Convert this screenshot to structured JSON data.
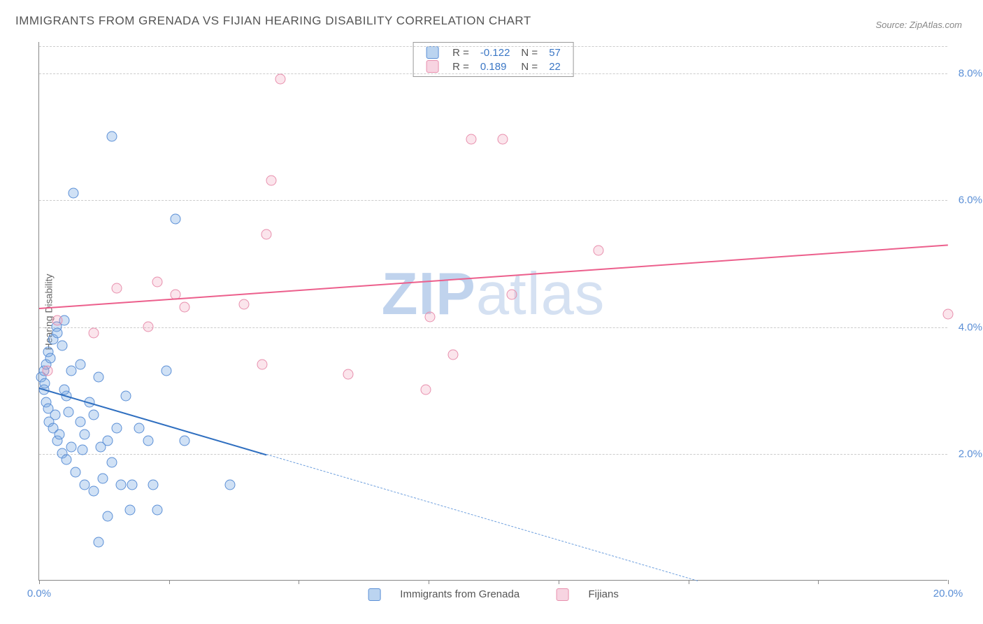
{
  "title": "IMMIGRANTS FROM GRENADA VS FIJIAN HEARING DISABILITY CORRELATION CHART",
  "source": "Source: ZipAtlas.com",
  "ylabel": "Hearing Disability",
  "watermark_bold": "ZIP",
  "watermark_rest": "atlas",
  "chart": {
    "type": "scatter",
    "background_color": "#ffffff",
    "grid_color": "#cccccc",
    "axis_color": "#888888",
    "tick_label_color": "#5b8fd6",
    "xlim": [
      0,
      20
    ],
    "ylim": [
      0,
      8.5
    ],
    "xticks": [
      0,
      2.86,
      5.71,
      8.57,
      11.43,
      14.29,
      17.14,
      20
    ],
    "xtick_labels": {
      "0": "0.0%",
      "20": "20.0%"
    },
    "yticks": [
      2,
      4,
      6,
      8
    ],
    "ytick_labels": {
      "2": "2.0%",
      "4": "4.0%",
      "6": "6.0%",
      "8": "8.0%"
    },
    "label_fontsize": 15,
    "title_fontsize": 17,
    "marker_size": 15,
    "series": [
      {
        "key": "grenada",
        "label": "Immigrants from Grenada",
        "color_fill": "rgba(120,170,225,0.35)",
        "color_stroke": "#5b8fd6",
        "R": "-0.122",
        "N": "57",
        "trend": {
          "x1": 0,
          "y1": 3.05,
          "x2": 14.5,
          "y2": 0,
          "solid_until_x": 5.0,
          "color": "#2f6fc0"
        },
        "points": [
          [
            0.05,
            3.2
          ],
          [
            0.1,
            3.3
          ],
          [
            0.1,
            3.0
          ],
          [
            0.12,
            3.1
          ],
          [
            0.15,
            3.4
          ],
          [
            0.15,
            2.8
          ],
          [
            0.2,
            2.7
          ],
          [
            0.2,
            3.6
          ],
          [
            0.22,
            2.5
          ],
          [
            0.25,
            3.5
          ],
          [
            0.3,
            2.4
          ],
          [
            0.3,
            3.8
          ],
          [
            0.35,
            2.6
          ],
          [
            0.38,
            4.0
          ],
          [
            0.4,
            2.2
          ],
          [
            0.4,
            3.9
          ],
          [
            0.45,
            2.3
          ],
          [
            0.5,
            2.0
          ],
          [
            0.5,
            3.7
          ],
          [
            0.55,
            4.1
          ],
          [
            0.6,
            1.9
          ],
          [
            0.6,
            2.9
          ],
          [
            0.7,
            2.1
          ],
          [
            0.7,
            3.3
          ],
          [
            0.75,
            6.1
          ],
          [
            0.8,
            1.7
          ],
          [
            0.9,
            2.5
          ],
          [
            0.9,
            3.4
          ],
          [
            1.0,
            1.5
          ],
          [
            1.0,
            2.3
          ],
          [
            1.1,
            2.8
          ],
          [
            1.2,
            1.4
          ],
          [
            1.2,
            2.6
          ],
          [
            1.3,
            3.2
          ],
          [
            1.4,
            1.6
          ],
          [
            1.5,
            2.2
          ],
          [
            1.5,
            1.0
          ],
          [
            1.6,
            7.0
          ],
          [
            1.7,
            2.4
          ],
          [
            1.8,
            1.5
          ],
          [
            1.9,
            2.9
          ],
          [
            2.0,
            1.1
          ],
          [
            2.2,
            2.4
          ],
          [
            2.4,
            2.2
          ],
          [
            2.5,
            1.5
          ],
          [
            2.6,
            1.1
          ],
          [
            2.8,
            3.3
          ],
          [
            3.0,
            5.7
          ],
          [
            3.2,
            2.2
          ],
          [
            1.3,
            0.6
          ],
          [
            0.55,
            3.0
          ],
          [
            0.65,
            2.65
          ],
          [
            0.95,
            2.05
          ],
          [
            1.35,
            2.1
          ],
          [
            1.6,
            1.85
          ],
          [
            4.2,
            1.5
          ],
          [
            2.05,
            1.5
          ]
        ]
      },
      {
        "key": "fijians",
        "label": "Fijians",
        "color_fill": "rgba(240,150,180,0.25)",
        "color_stroke": "#e88fad",
        "R": "0.189",
        "N": "22",
        "trend": {
          "x1": 0,
          "y1": 4.3,
          "x2": 20,
          "y2": 5.3,
          "color": "#ec5f8c"
        },
        "points": [
          [
            0.18,
            3.3
          ],
          [
            0.4,
            4.1
          ],
          [
            1.2,
            3.9
          ],
          [
            2.4,
            4.0
          ],
          [
            2.6,
            4.7
          ],
          [
            3.0,
            4.5
          ],
          [
            3.2,
            4.3
          ],
          [
            4.5,
            4.35
          ],
          [
            4.9,
            3.4
          ],
          [
            5.0,
            5.45
          ],
          [
            5.1,
            6.3
          ],
          [
            5.3,
            7.9
          ],
          [
            6.8,
            3.25
          ],
          [
            8.5,
            3.0
          ],
          [
            8.6,
            4.15
          ],
          [
            9.1,
            3.55
          ],
          [
            9.5,
            6.95
          ],
          [
            10.2,
            6.95
          ],
          [
            10.4,
            4.5
          ],
          [
            12.3,
            5.2
          ],
          [
            20.0,
            4.2
          ],
          [
            1.7,
            4.6
          ]
        ]
      }
    ],
    "legend_bottom": [
      {
        "swatch": "blue",
        "label_key": "chart.series.0.label"
      },
      {
        "swatch": "pink",
        "label_key": "chart.series.1.label"
      }
    ]
  }
}
